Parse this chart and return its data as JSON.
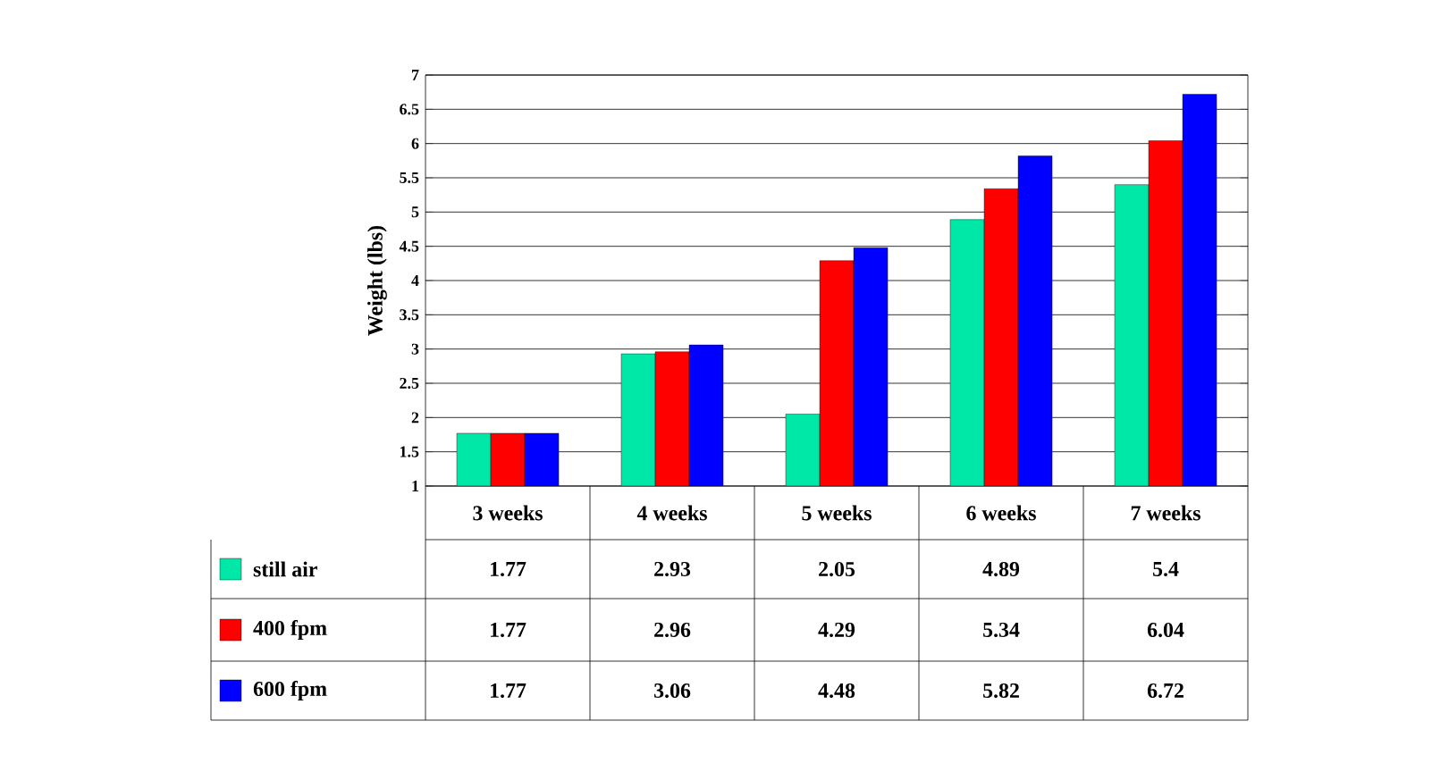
{
  "chart_data": {
    "type": "bar",
    "ylabel": "Weight (lbs)",
    "categories": [
      "3 weeks",
      "4 weeks",
      "5 weeks",
      "6 weeks",
      "7 weeks"
    ],
    "series": [
      {
        "name": "still air",
        "color": "#00e8a8",
        "values": [
          1.77,
          2.93,
          2.05,
          4.89,
          5.4
        ]
      },
      {
        "name": "400 fpm",
        "color": "#ff0000",
        "values": [
          1.77,
          2.96,
          4.29,
          5.34,
          6.04
        ]
      },
      {
        "name": "600 fpm",
        "color": "#0000ff",
        "values": [
          1.77,
          3.06,
          4.48,
          5.82,
          6.72
        ]
      }
    ],
    "ylim": [
      1,
      7
    ],
    "yticks": [
      1,
      1.5,
      2,
      2.5,
      3,
      3.5,
      4,
      4.5,
      5,
      5.5,
      6,
      6.5,
      7
    ],
    "grid": "y",
    "legend": "bottom",
    "data_labels": true
  }
}
